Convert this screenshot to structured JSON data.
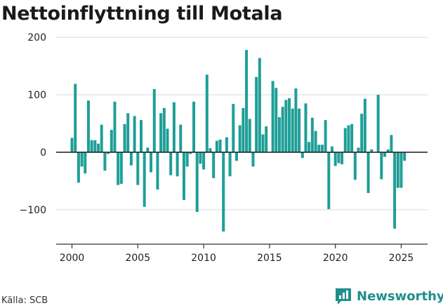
{
  "chart_data": {
    "type": "bar",
    "title": "Nettoinflyttning till Motala",
    "xlabel": "",
    "ylabel": "",
    "ylim": [
      -160,
      210
    ],
    "xlim": [
      1998.8,
      2027.0
    ],
    "y_ticks": [
      200,
      100,
      0,
      -100
    ],
    "y_tick_labels": [
      "200",
      "100",
      "0",
      "−100"
    ],
    "x_ticks": [
      2000,
      2005,
      2010,
      2015,
      2020,
      2025
    ],
    "x_tick_labels": [
      "2000",
      "2005",
      "2010",
      "2015",
      "2020",
      "2025"
    ],
    "grid": "horizontal",
    "legend": "none",
    "bar_color": "#1f9e97",
    "x_start": 2000.0,
    "x_step": 0.25,
    "values": [
      25,
      119,
      -53,
      -25,
      -37,
      90,
      21,
      21,
      15,
      48,
      -32,
      -3,
      39,
      88,
      -57,
      -55,
      49,
      68,
      -23,
      63,
      -57,
      56,
      -95,
      8,
      -35,
      110,
      -65,
      68,
      77,
      41,
      -40,
      87,
      -42,
      48,
      -83,
      -25,
      -3,
      88,
      -104,
      -20,
      -30,
      135,
      7,
      -45,
      20,
      22,
      -138,
      26,
      -42,
      84,
      -15,
      47,
      77,
      178,
      58,
      -25,
      131,
      164,
      31,
      45,
      0,
      124,
      112,
      61,
      79,
      91,
      94,
      76,
      111,
      76,
      -10,
      85,
      18,
      60,
      37,
      13,
      13,
      56,
      -99,
      10,
      -24,
      -19,
      -21,
      42,
      47,
      49,
      -48,
      8,
      67,
      93,
      -71,
      5,
      0,
      100,
      -47,
      -8,
      5,
      30,
      -133,
      -62,
      -62,
      -15
    ],
    "source": "Källa: SCB",
    "brand": "Newsworthy"
  }
}
